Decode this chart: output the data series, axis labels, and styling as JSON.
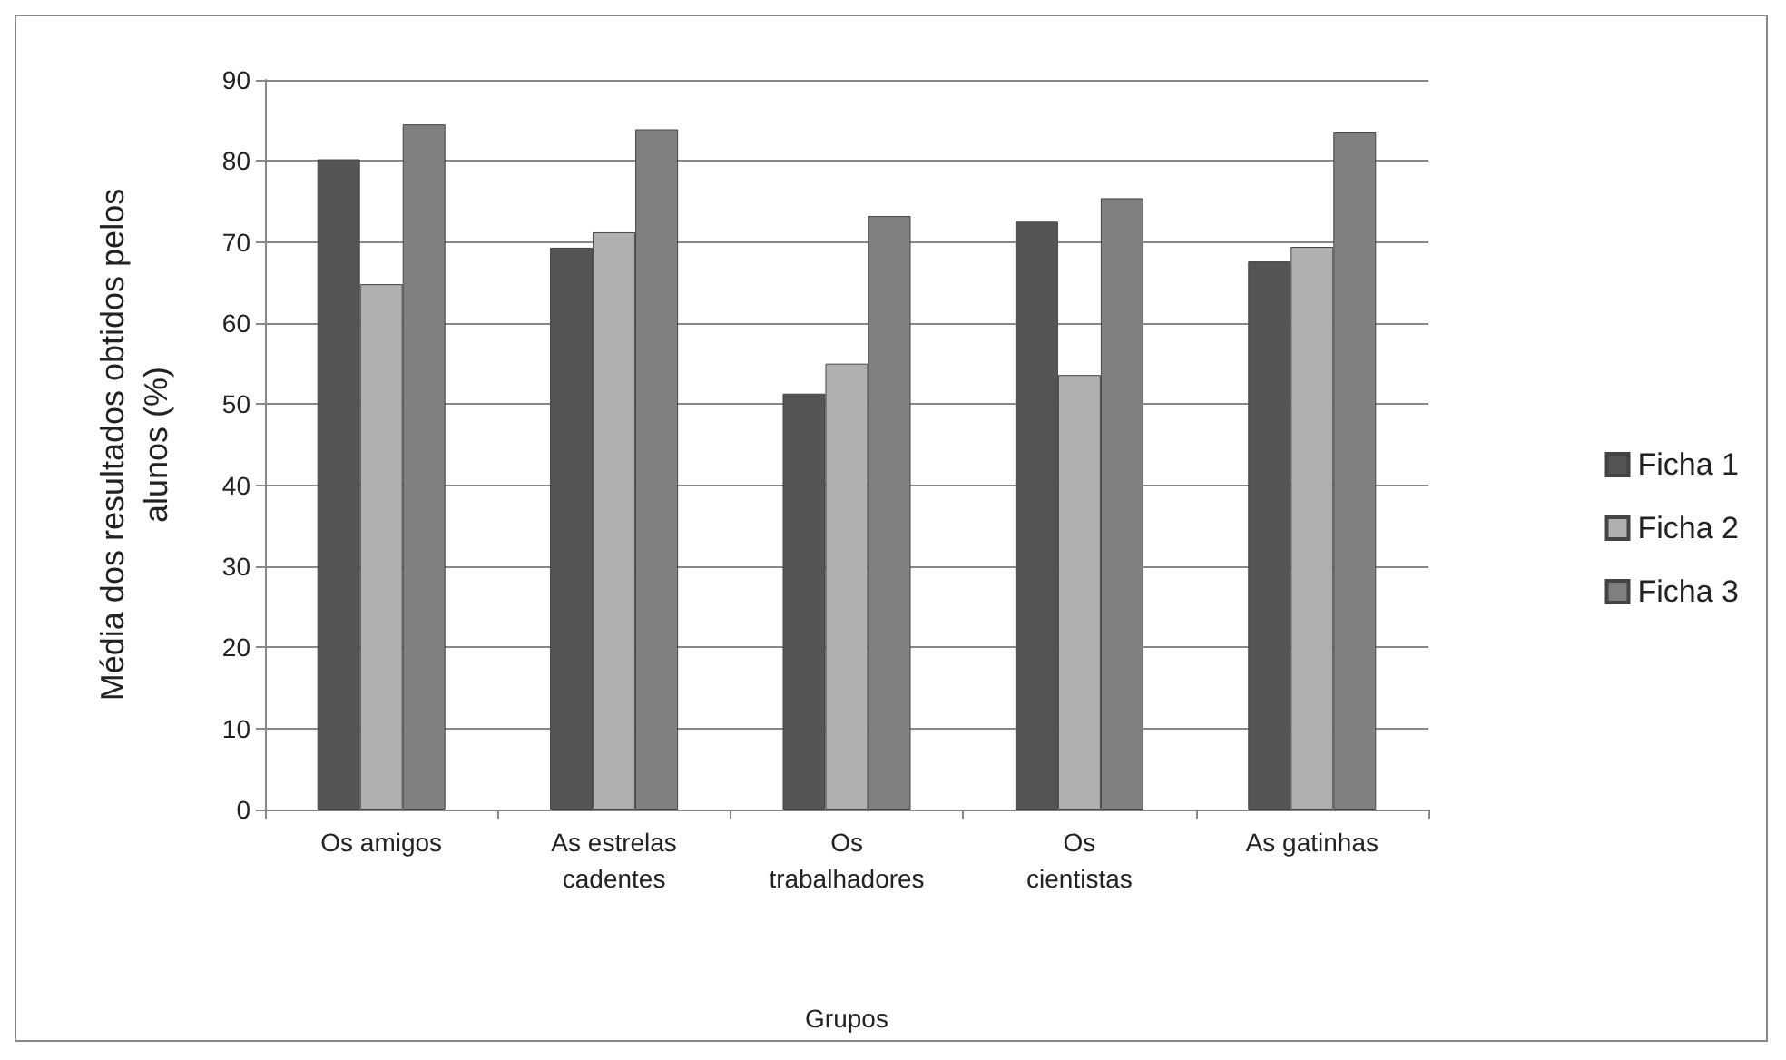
{
  "chart_data": {
    "type": "bar",
    "xlabel": "Grupos",
    "ylabel": "Média dos resultados obtidos pelos alunos (%)",
    "categories": [
      "Os amigos",
      "As estrelas cadentes",
      "Os trabalhadores",
      "Os cientistas",
      "As gatinhas"
    ],
    "series": [
      {
        "name": "Ficha 1",
        "color": "#555555",
        "values": [
          80.2,
          69.3,
          51.3,
          72.5,
          67.6
        ]
      },
      {
        "name": "Ficha 2",
        "color": "#b0b0b0",
        "values": [
          64.8,
          71.2,
          55,
          53.6,
          69.4
        ]
      },
      {
        "name": "Ficha 3",
        "color": "#808080",
        "values": [
          84.5,
          83.9,
          73.2,
          75.4,
          83.5
        ]
      }
    ],
    "ylim": [
      0,
      90
    ],
    "yticks": [
      0,
      10,
      20,
      30,
      40,
      50,
      60,
      70,
      80,
      90
    ],
    "grid": "y",
    "legend": "right"
  }
}
